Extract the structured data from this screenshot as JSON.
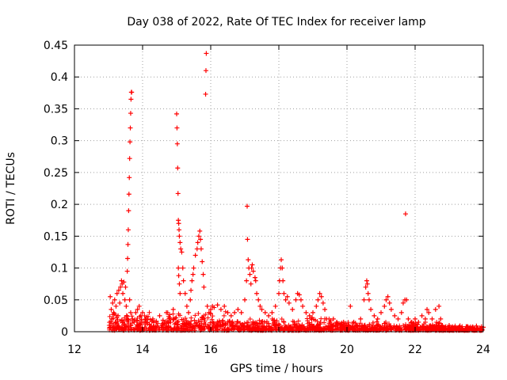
{
  "chart_data": {
    "type": "scatter",
    "title": "Day 038 of 2022, Rate Of TEC Index for receiver lamp",
    "xlabel": "GPS time / hours",
    "ylabel": "ROTI / TECUs",
    "xlim": [
      12,
      24
    ],
    "ylim": [
      0,
      0.45
    ],
    "xticks": [
      12,
      14,
      16,
      18,
      20,
      22,
      24
    ],
    "yticks": [
      0,
      0.05,
      0.1,
      0.15,
      0.2,
      0.25,
      0.3,
      0.35,
      0.4,
      0.45
    ],
    "xtick_labels": [
      "12",
      "14",
      "16",
      "18",
      "20",
      "22",
      "24"
    ],
    "ytick_labels": [
      "0",
      "0.05",
      "0.1",
      "0.15",
      "0.2",
      "0.25",
      "0.3",
      "0.35",
      "0.4",
      "0.45"
    ],
    "grid": true,
    "marker": "+",
    "color": "#ff0000",
    "series": [
      {
        "name": "ROTI",
        "points": [
          [
            13.05,
            0.055
          ],
          [
            13.08,
            0.035
          ],
          [
            13.1,
            0.02
          ],
          [
            13.12,
            0.045
          ],
          [
            13.15,
            0.03
          ],
          [
            13.18,
            0.05
          ],
          [
            13.2,
            0.015
          ],
          [
            13.22,
            0.04
          ],
          [
            13.25,
            0.06
          ],
          [
            13.28,
            0.025
          ],
          [
            13.3,
            0.065
          ],
          [
            13.33,
            0.045
          ],
          [
            13.35,
            0.07
          ],
          [
            13.38,
            0.08
          ],
          [
            13.4,
            0.075
          ],
          [
            13.42,
            0.06
          ],
          [
            13.45,
            0.078
          ],
          [
            13.48,
            0.05
          ],
          [
            13.5,
            0.07
          ],
          [
            13.52,
            0.04
          ],
          [
            13.55,
            0.095
          ],
          [
            13.56,
            0.115
          ],
          [
            13.57,
            0.137
          ],
          [
            13.58,
            0.16
          ],
          [
            13.59,
            0.19
          ],
          [
            13.6,
            0.216
          ],
          [
            13.61,
            0.242
          ],
          [
            13.62,
            0.272
          ],
          [
            13.63,
            0.298
          ],
          [
            13.64,
            0.32
          ],
          [
            13.65,
            0.343
          ],
          [
            13.66,
            0.365
          ],
          [
            13.67,
            0.376
          ],
          [
            13.68,
            0.376
          ],
          [
            13.62,
            0.05
          ],
          [
            13.65,
            0.03
          ],
          [
            13.7,
            0.02
          ],
          [
            13.75,
            0.015
          ],
          [
            13.8,
            0.03
          ],
          [
            13.85,
            0.035
          ],
          [
            13.9,
            0.04
          ],
          [
            13.95,
            0.025
          ],
          [
            14.0,
            0.03
          ],
          [
            14.05,
            0.015
          ],
          [
            14.1,
            0.02
          ],
          [
            14.2,
            0.012
          ],
          [
            14.3,
            0.02
          ],
          [
            14.4,
            0.015
          ],
          [
            14.5,
            0.025
          ],
          [
            14.6,
            0.018
          ],
          [
            14.7,
            0.03
          ],
          [
            14.8,
            0.022
          ],
          [
            14.9,
            0.035
          ],
          [
            15.0,
            0.342
          ],
          [
            15.01,
            0.32
          ],
          [
            15.02,
            0.295
          ],
          [
            15.03,
            0.257
          ],
          [
            15.04,
            0.217
          ],
          [
            15.05,
            0.175
          ],
          [
            15.06,
            0.17
          ],
          [
            15.07,
            0.16
          ],
          [
            15.08,
            0.15
          ],
          [
            15.1,
            0.14
          ],
          [
            15.12,
            0.13
          ],
          [
            15.15,
            0.125
          ],
          [
            15.18,
            0.1
          ],
          [
            15.05,
            0.1
          ],
          [
            15.06,
            0.088
          ],
          [
            15.08,
            0.075
          ],
          [
            15.1,
            0.06
          ],
          [
            15.2,
            0.08
          ],
          [
            15.25,
            0.06
          ],
          [
            15.3,
            0.04
          ],
          [
            15.35,
            0.03
          ],
          [
            15.4,
            0.05
          ],
          [
            15.42,
            0.065
          ],
          [
            15.45,
            0.08
          ],
          [
            15.48,
            0.09
          ],
          [
            15.5,
            0.1
          ],
          [
            15.55,
            0.12
          ],
          [
            15.6,
            0.13
          ],
          [
            15.62,
            0.14
          ],
          [
            15.65,
            0.15
          ],
          [
            15.68,
            0.158
          ],
          [
            15.7,
            0.145
          ],
          [
            15.72,
            0.13
          ],
          [
            15.75,
            0.11
          ],
          [
            15.78,
            0.09
          ],
          [
            15.8,
            0.07
          ],
          [
            15.85,
            0.373
          ],
          [
            15.86,
            0.41
          ],
          [
            15.87,
            0.437
          ],
          [
            15.9,
            0.04
          ],
          [
            15.95,
            0.03
          ],
          [
            16.0,
            0.035
          ],
          [
            16.05,
            0.04
          ],
          [
            16.1,
            0.038
          ],
          [
            16.2,
            0.042
          ],
          [
            16.3,
            0.035
          ],
          [
            16.4,
            0.04
          ],
          [
            16.5,
            0.03
          ],
          [
            16.6,
            0.025
          ],
          [
            16.7,
            0.03
          ],
          [
            16.8,
            0.035
          ],
          [
            16.9,
            0.03
          ],
          [
            17.0,
            0.05
          ],
          [
            17.05,
            0.08
          ],
          [
            17.07,
            0.197
          ],
          [
            17.08,
            0.145
          ],
          [
            17.1,
            0.113
          ],
          [
            17.12,
            0.1
          ],
          [
            17.15,
            0.09
          ],
          [
            17.18,
            0.075
          ],
          [
            17.2,
            0.1
          ],
          [
            17.22,
            0.105
          ],
          [
            17.25,
            0.095
          ],
          [
            17.3,
            0.085
          ],
          [
            17.32,
            0.08
          ],
          [
            17.35,
            0.06
          ],
          [
            17.4,
            0.05
          ],
          [
            17.45,
            0.04
          ],
          [
            17.5,
            0.035
          ],
          [
            17.6,
            0.03
          ],
          [
            17.7,
            0.025
          ],
          [
            17.8,
            0.03
          ],
          [
            17.9,
            0.04
          ],
          [
            18.0,
            0.06
          ],
          [
            18.02,
            0.08
          ],
          [
            18.05,
            0.1
          ],
          [
            18.07,
            0.113
          ],
          [
            18.1,
            0.1
          ],
          [
            18.12,
            0.08
          ],
          [
            18.15,
            0.06
          ],
          [
            18.2,
            0.05
          ],
          [
            18.25,
            0.055
          ],
          [
            18.3,
            0.045
          ],
          [
            18.4,
            0.035
          ],
          [
            18.5,
            0.05
          ],
          [
            18.55,
            0.06
          ],
          [
            18.6,
            0.058
          ],
          [
            18.65,
            0.05
          ],
          [
            18.7,
            0.04
          ],
          [
            18.8,
            0.03
          ],
          [
            18.9,
            0.025
          ],
          [
            19.0,
            0.03
          ],
          [
            19.1,
            0.04
          ],
          [
            19.15,
            0.05
          ],
          [
            19.2,
            0.06
          ],
          [
            19.25,
            0.055
          ],
          [
            19.3,
            0.045
          ],
          [
            19.35,
            0.035
          ],
          [
            19.4,
            0.02
          ],
          [
            19.5,
            0.015
          ],
          [
            19.6,
            0.02
          ],
          [
            19.7,
            0.015
          ],
          [
            19.8,
            0.01
          ],
          [
            19.9,
            0.015
          ],
          [
            20.0,
            0.01
          ],
          [
            20.1,
            0.04
          ],
          [
            20.2,
            0.015
          ],
          [
            20.3,
            0.01
          ],
          [
            20.4,
            0.02
          ],
          [
            20.5,
            0.05
          ],
          [
            20.55,
            0.07
          ],
          [
            20.58,
            0.08
          ],
          [
            20.6,
            0.075
          ],
          [
            20.62,
            0.06
          ],
          [
            20.65,
            0.05
          ],
          [
            20.7,
            0.035
          ],
          [
            20.8,
            0.025
          ],
          [
            20.9,
            0.02
          ],
          [
            21.0,
            0.03
          ],
          [
            21.1,
            0.04
          ],
          [
            21.15,
            0.05
          ],
          [
            21.2,
            0.055
          ],
          [
            21.25,
            0.045
          ],
          [
            21.3,
            0.035
          ],
          [
            21.4,
            0.025
          ],
          [
            21.5,
            0.02
          ],
          [
            21.6,
            0.03
          ],
          [
            21.65,
            0.045
          ],
          [
            21.7,
            0.05
          ],
          [
            21.72,
            0.185
          ],
          [
            21.75,
            0.05
          ],
          [
            21.8,
            0.02
          ],
          [
            21.9,
            0.015
          ],
          [
            22.0,
            0.02
          ],
          [
            22.1,
            0.015
          ],
          [
            22.2,
            0.025
          ],
          [
            22.3,
            0.02
          ],
          [
            22.35,
            0.035
          ],
          [
            22.4,
            0.03
          ],
          [
            22.5,
            0.02
          ],
          [
            22.6,
            0.035
          ],
          [
            22.7,
            0.04
          ],
          [
            22.75,
            0.02
          ],
          [
            22.8,
            0.01
          ],
          [
            22.9,
            0.008
          ],
          [
            23.0,
            0.01
          ],
          [
            23.1,
            0.008
          ],
          [
            23.2,
            0.006
          ],
          [
            23.3,
            0.008
          ],
          [
            23.4,
            0.005
          ],
          [
            23.5,
            0.008
          ],
          [
            23.6,
            0.006
          ],
          [
            23.7,
            0.007
          ],
          [
            23.8,
            0.009
          ],
          [
            23.9,
            0.006
          ],
          [
            23.95,
            0.008
          ],
          [
            24.0,
            0.007
          ]
        ]
      }
    ]
  }
}
